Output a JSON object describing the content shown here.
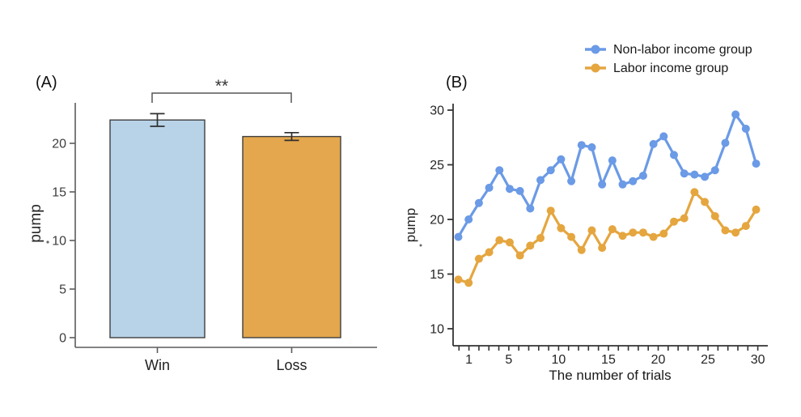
{
  "figure_background": "#ffffff",
  "chart_data": [
    {
      "type": "bar",
      "panel_label": "(A)",
      "title": "",
      "ylabel": "pump",
      "categories": [
        "Win",
        "Loss"
      ],
      "values": [
        22.4,
        20.7
      ],
      "errors": [
        0.65,
        0.4
      ],
      "bar_fill_colors": [
        "#b8d3e7",
        "#e4a74d"
      ],
      "bar_border_color": "#3f3f3f",
      "error_bar_color": "#2f2f2f",
      "axis_color": "#5c5c5c",
      "yticks": [
        0,
        5,
        10,
        15,
        20
      ],
      "ylim": [
        0,
        25
      ],
      "grid": false,
      "significance": {
        "between": [
          "Win",
          "Loss"
        ],
        "label": "**",
        "bracket_color": "#555555"
      }
    },
    {
      "type": "line",
      "panel_label": "(B)",
      "title": "",
      "xlabel": "The number of trials",
      "ylabel": "pump",
      "x": [
        1,
        2,
        3,
        4,
        5,
        6,
        7,
        8,
        9,
        10,
        11,
        12,
        13,
        14,
        15,
        16,
        17,
        18,
        19,
        20,
        21,
        22,
        23,
        24,
        25,
        26,
        27,
        28,
        29,
        30
      ],
      "xtick_labels": [
        1,
        5,
        10,
        15,
        20,
        25,
        30
      ],
      "yticks": [
        10,
        15,
        20,
        25,
        30
      ],
      "ylim": [
        10,
        31
      ],
      "grid": false,
      "axis_color": "#333333",
      "legend_position": "top-right",
      "series": [
        {
          "name": "Non-labor income group",
          "color": "#6b9ae6",
          "values": [
            18.4,
            20.0,
            21.5,
            22.9,
            24.5,
            22.8,
            22.6,
            21.0,
            23.6,
            24.5,
            25.5,
            23.5,
            26.8,
            26.6,
            23.2,
            25.4,
            23.2,
            23.5,
            24.0,
            26.9,
            27.6,
            25.9,
            24.2,
            24.1,
            23.9,
            24.5,
            27.0,
            29.6,
            28.3,
            25.1
          ]
        },
        {
          "name": "Labor income group",
          "color": "#e5a63f",
          "values": [
            14.5,
            14.2,
            16.4,
            17.0,
            18.1,
            17.9,
            16.7,
            17.6,
            18.3,
            20.8,
            19.2,
            18.4,
            17.2,
            19.0,
            17.4,
            19.1,
            18.5,
            18.8,
            18.8,
            18.4,
            18.7,
            19.8,
            20.1,
            22.5,
            21.6,
            20.3,
            19.0,
            18.8,
            19.4,
            20.9
          ]
        }
      ]
    }
  ]
}
